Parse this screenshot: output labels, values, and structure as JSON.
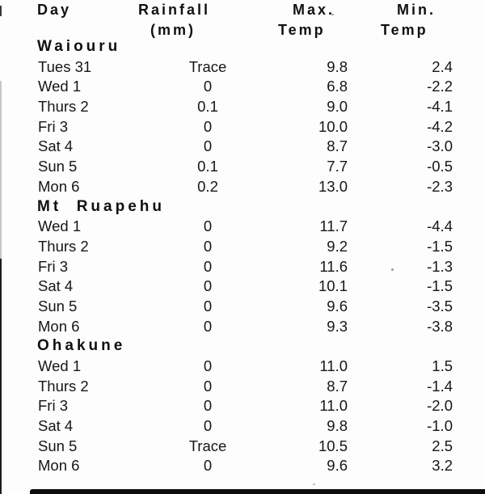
{
  "document": {
    "kind": "scanned weather statistics table",
    "colors": {
      "paper": "#fdfdfd",
      "ink": "#151515"
    }
  },
  "table": {
    "columns": [
      {
        "id": "day",
        "header_line1": "Day",
        "header_line2": ""
      },
      {
        "id": "rainfall",
        "header_line1": "Rainfall",
        "header_line2": "(mm)"
      },
      {
        "id": "max_temp",
        "header_line1": "Max.",
        "header_line2": "Temp"
      },
      {
        "id": "min_temp",
        "header_line1": "Min.",
        "header_line2": "Temp"
      }
    ],
    "sections": [
      {
        "name": "Waiouru",
        "rows": [
          {
            "day": "Tues 31",
            "rainfall": "Trace",
            "max": "9.8",
            "min": "2.4"
          },
          {
            "day": "Wed 1",
            "rainfall": "0",
            "max": "6.8",
            "min": "-2.2"
          },
          {
            "day": "Thurs 2",
            "rainfall": "0.1",
            "max": "9.0",
            "min": "-4.1"
          },
          {
            "day": "Fri 3",
            "rainfall": "0",
            "max": "10.0",
            "min": "-4.2"
          },
          {
            "day": "Sat 4",
            "rainfall": "0",
            "max": "8.7",
            "min": "-3.0"
          },
          {
            "day": "Sun 5",
            "rainfall": "0.1",
            "max": "7.7",
            "min": "-0.5"
          },
          {
            "day": "Mon 6",
            "rainfall": "0.2",
            "max": "13.0",
            "min": "-2.3"
          }
        ]
      },
      {
        "name": "Mt  Ruapehu",
        "rows": [
          {
            "day": "Wed 1",
            "rainfall": "0",
            "max": "11.7",
            "min": "-4.4"
          },
          {
            "day": "Thurs 2",
            "rainfall": "0",
            "max": "9.2",
            "min": "-1.5"
          },
          {
            "day": "Fri 3",
            "rainfall": "0",
            "max": "11.6",
            "min": "-1.3"
          },
          {
            "day": "Sat 4",
            "rainfall": "0",
            "max": "10.1",
            "min": "-1.5"
          },
          {
            "day": "Sun 5",
            "rainfall": "0",
            "max": "9.6",
            "min": "-3.5"
          },
          {
            "day": "Mon 6",
            "rainfall": "0",
            "max": "9.3",
            "min": "-3.8"
          }
        ]
      },
      {
        "name": "Ohakune",
        "rows": [
          {
            "day": "Wed 1",
            "rainfall": "0",
            "max": "11.0",
            "min": "1.5"
          },
          {
            "day": "Thurs 2",
            "rainfall": "0",
            "max": "8.7",
            "min": "-1.4"
          },
          {
            "day": "Fri 3",
            "rainfall": "0",
            "max": "11.0",
            "min": "-2.0"
          },
          {
            "day": "Sat 4",
            "rainfall": "0",
            "max": "9.8",
            "min": "-1.0"
          },
          {
            "day": "Sun 5",
            "rainfall": "Trace",
            "max": "10.5",
            "min": "2.5"
          },
          {
            "day": "Mon 6",
            "rainfall": "0",
            "max": "9.6",
            "min": "3.2"
          }
        ]
      }
    ]
  }
}
